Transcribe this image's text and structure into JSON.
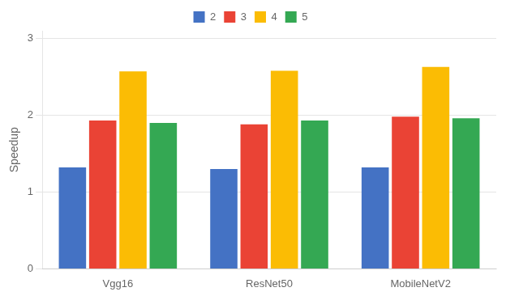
{
  "chart_data": {
    "type": "bar",
    "categories": [
      "Vgg16",
      "ResNet50",
      "MobileNetV2"
    ],
    "series": [
      {
        "name": "2",
        "color": "#4472C4",
        "values": [
          1.32,
          1.3,
          1.32
        ]
      },
      {
        "name": "3",
        "color": "#EA4335",
        "values": [
          1.93,
          1.88,
          1.98
        ]
      },
      {
        "name": "4",
        "color": "#FBBC04",
        "values": [
          2.57,
          2.58,
          2.63
        ]
      },
      {
        "name": "5",
        "color": "#34A853",
        "values": [
          1.9,
          1.93,
          1.96
        ]
      }
    ],
    "y_label": "Speedup",
    "ylim": [
      0,
      3.1
    ],
    "yticks": [
      0,
      1,
      2,
      3
    ],
    "grid": true,
    "legend": "top"
  }
}
